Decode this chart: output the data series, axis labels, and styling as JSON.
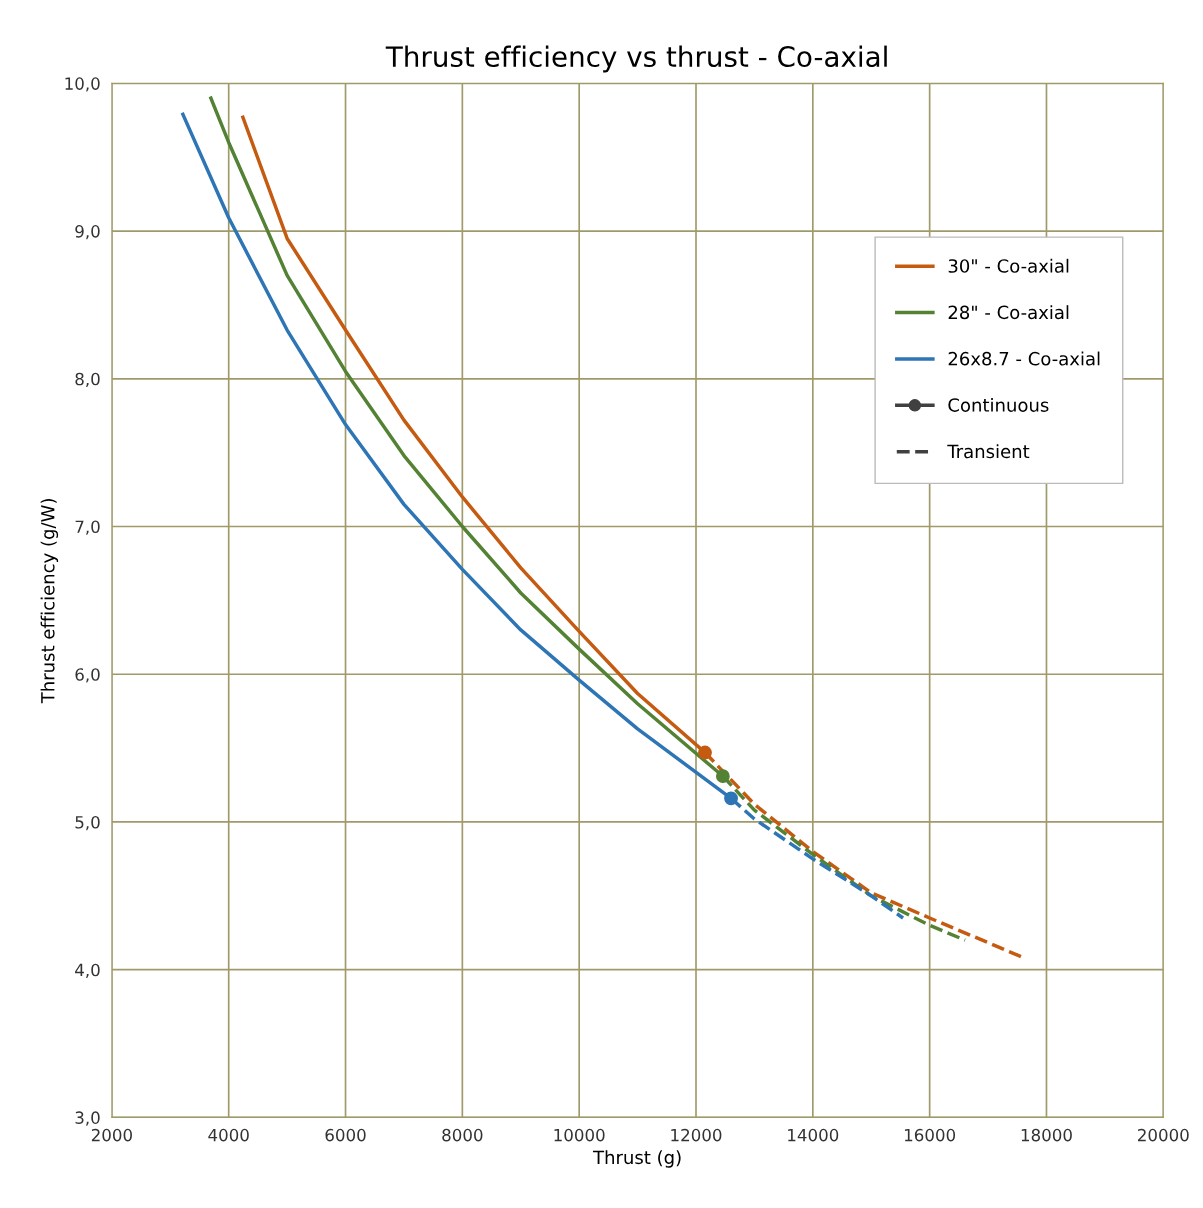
{
  "chart_data": {
    "type": "line",
    "title": "Thrust efficiency vs thrust - Co-axial",
    "xlabel": "Thrust (g)",
    "ylabel": "Thrust efficiency (g/W)",
    "xlim": [
      2000,
      20000
    ],
    "xticks": [
      2000,
      4000,
      6000,
      8000,
      10000,
      12000,
      14000,
      16000,
      18000,
      20000
    ],
    "ylim": [
      3,
      10
    ],
    "yticks": [
      {
        "value": 3,
        "label": "3,0"
      },
      {
        "value": 4,
        "label": "4,0"
      },
      {
        "value": 5,
        "label": "5,0"
      },
      {
        "value": 6,
        "label": "6,0"
      },
      {
        "value": 7,
        "label": "7,0"
      },
      {
        "value": 8,
        "label": "8,0"
      },
      {
        "value": 9,
        "label": "9,0"
      },
      {
        "value": 10,
        "label": "10,0"
      }
    ],
    "grid": true,
    "legend": "top right",
    "series": [
      {
        "name": "30\" - Co-axial",
        "line_style": "solid",
        "color": "#c55a11",
        "x": [
          4243,
          5000,
          6000,
          7000,
          8000,
          9000,
          10000,
          11000,
          12154
        ],
        "values": [
          9.77,
          8.95,
          8.33,
          7.72,
          7.2,
          6.72,
          6.29,
          5.87,
          5.47
        ]
      },
      {
        "name": "28\" - Co-axial",
        "line_style": "solid",
        "color": "#548235",
        "x": [
          3695,
          4000,
          5000,
          6000,
          7000,
          8000,
          9000,
          10000,
          11000,
          12460
        ],
        "values": [
          9.9,
          9.6,
          8.7,
          8.05,
          7.48,
          7.0,
          6.55,
          6.17,
          5.8,
          5.31
        ]
      },
      {
        "name": "26x8.7 - Co-axial",
        "line_style": "solid",
        "color": "#2e75b6",
        "x": [
          3216,
          4000,
          5000,
          6000,
          7000,
          8000,
          9000,
          10000,
          11000,
          12600
        ],
        "values": [
          9.79,
          9.09,
          8.33,
          7.69,
          7.15,
          6.71,
          6.3,
          5.96,
          5.63,
          5.16
        ]
      },
      {
        "name": "Continuous",
        "type": "line",
        "line_style": "solid",
        "marker": "circle",
        "color": "#404040"
      },
      {
        "name": "Transient",
        "type": "line",
        "line_style": "dashed",
        "color": "#404040"
      },
      {
        "line_style": "dashed",
        "color": "#c55a11",
        "x": [
          12154,
          13000,
          14000,
          15000,
          16000,
          17616
        ],
        "values": [
          5.47,
          5.12,
          4.8,
          4.52,
          4.35,
          4.08
        ]
      },
      {
        "line_style": "dashed",
        "color": "#548235",
        "x": [
          12460,
          13000,
          14000,
          15000,
          16000,
          16606
        ],
        "values": [
          5.31,
          5.08,
          4.78,
          4.5,
          4.3,
          4.2
        ]
      },
      {
        "line_style": "dashed",
        "color": "#2e75b6",
        "x": [
          12600,
          13000,
          14000,
          15000,
          15545
        ],
        "values": [
          5.16,
          5.02,
          4.75,
          4.5,
          4.35
        ]
      },
      {
        "type": "scatter",
        "marker": "circle",
        "color": "#c55a11",
        "x": [
          12154
        ],
        "values": [
          5.47
        ]
      },
      {
        "type": "scatter",
        "marker": "circle",
        "color": "#548235",
        "x": [
          12460
        ],
        "values": [
          5.31
        ]
      },
      {
        "type": "scatter",
        "marker": "circle",
        "color": "#2e75b6",
        "x": [
          12600
        ],
        "values": [
          5.16
        ]
      }
    ]
  }
}
